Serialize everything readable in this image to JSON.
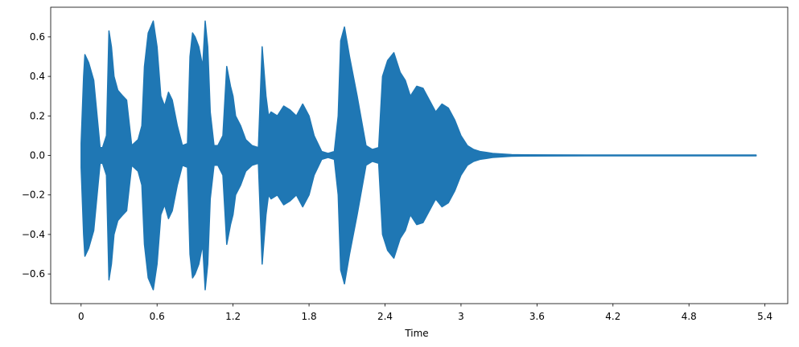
{
  "chart_data": {
    "type": "area",
    "title": "",
    "xlabel": "Time",
    "ylabel": "",
    "xlim": [
      -0.24,
      5.58
    ],
    "ylim": [
      -0.75,
      0.75
    ],
    "xticks": [
      0,
      0.6,
      1.2,
      1.8,
      2.4,
      3.0,
      3.6,
      4.2,
      4.8,
      5.4
    ],
    "xtick_labels": [
      "0",
      "0.6",
      "1.2",
      "1.8",
      "2.4",
      "3",
      "3.6",
      "4.2",
      "4.8",
      "5.4"
    ],
    "yticks": [
      0.6,
      0.4,
      0.2,
      0.0,
      -0.2,
      -0.4,
      -0.6
    ],
    "ytick_labels": [
      "0.6",
      "0.4",
      "0.2",
      "0.0",
      "−0.2",
      "−0.4",
      "−0.6"
    ],
    "grid": false,
    "color": "#1f77b4",
    "series": [
      {
        "x": [
          0.0,
          0.02,
          0.03,
          0.06,
          0.1,
          0.15,
          0.17,
          0.2,
          0.22,
          0.24,
          0.26,
          0.29,
          0.33,
          0.36,
          0.4,
          0.45,
          0.48,
          0.5,
          0.53,
          0.57,
          0.6,
          0.63,
          0.66,
          0.69,
          0.72,
          0.76,
          0.8,
          0.84,
          0.86,
          0.88,
          0.9,
          0.93,
          0.96,
          0.98,
          1.0,
          1.02,
          1.05,
          1.08,
          1.12,
          1.15,
          1.18,
          1.2,
          1.22,
          1.26,
          1.3,
          1.35,
          1.4,
          1.43,
          1.46,
          1.48,
          1.5,
          1.55,
          1.6,
          1.65,
          1.7,
          1.75,
          1.8,
          1.84,
          1.9,
          1.95,
          2.0,
          2.03,
          2.05,
          2.08,
          2.12,
          2.18,
          2.25,
          2.3,
          2.35,
          2.38,
          2.42,
          2.47,
          2.52,
          2.56,
          2.6,
          2.65,
          2.7,
          2.75,
          2.8,
          2.85,
          2.9,
          2.95,
          3.0,
          3.05,
          3.1,
          3.15,
          3.2,
          3.25,
          3.3,
          3.35,
          3.4,
          3.5,
          4.0,
          4.5,
          5.0,
          5.33
        ],
        "upper": [
          0.06,
          0.4,
          0.51,
          0.47,
          0.38,
          0.04,
          0.04,
          0.1,
          0.63,
          0.55,
          0.4,
          0.33,
          0.3,
          0.28,
          0.05,
          0.08,
          0.15,
          0.45,
          0.62,
          0.68,
          0.55,
          0.3,
          0.25,
          0.32,
          0.28,
          0.15,
          0.05,
          0.06,
          0.5,
          0.62,
          0.6,
          0.55,
          0.45,
          0.68,
          0.55,
          0.22,
          0.05,
          0.05,
          0.1,
          0.45,
          0.35,
          0.3,
          0.2,
          0.15,
          0.08,
          0.05,
          0.04,
          0.55,
          0.3,
          0.2,
          0.22,
          0.2,
          0.25,
          0.23,
          0.2,
          0.26,
          0.2,
          0.1,
          0.02,
          0.01,
          0.02,
          0.2,
          0.58,
          0.65,
          0.5,
          0.3,
          0.05,
          0.03,
          0.04,
          0.4,
          0.48,
          0.52,
          0.42,
          0.38,
          0.3,
          0.35,
          0.34,
          0.28,
          0.22,
          0.26,
          0.24,
          0.18,
          0.1,
          0.05,
          0.03,
          0.02,
          0.015,
          0.01,
          0.008,
          0.006,
          0.004,
          0.003,
          0.002,
          0.002,
          0.002,
          0.002
        ],
        "lower": [
          -0.06,
          -0.4,
          -0.51,
          -0.47,
          -0.38,
          -0.04,
          -0.04,
          -0.1,
          -0.63,
          -0.55,
          -0.4,
          -0.33,
          -0.3,
          -0.28,
          -0.05,
          -0.08,
          -0.15,
          -0.45,
          -0.62,
          -0.68,
          -0.55,
          -0.3,
          -0.25,
          -0.32,
          -0.28,
          -0.15,
          -0.05,
          -0.06,
          -0.5,
          -0.62,
          -0.6,
          -0.55,
          -0.45,
          -0.68,
          -0.55,
          -0.22,
          -0.05,
          -0.05,
          -0.1,
          -0.45,
          -0.35,
          -0.3,
          -0.2,
          -0.15,
          -0.08,
          -0.05,
          -0.04,
          -0.55,
          -0.3,
          -0.2,
          -0.22,
          -0.2,
          -0.25,
          -0.23,
          -0.2,
          -0.26,
          -0.2,
          -0.1,
          -0.02,
          -0.01,
          -0.02,
          -0.2,
          -0.58,
          -0.65,
          -0.5,
          -0.3,
          -0.05,
          -0.03,
          -0.04,
          -0.4,
          -0.48,
          -0.52,
          -0.42,
          -0.38,
          -0.3,
          -0.35,
          -0.34,
          -0.28,
          -0.22,
          -0.26,
          -0.24,
          -0.18,
          -0.1,
          -0.05,
          -0.03,
          -0.02,
          -0.015,
          -0.01,
          -0.008,
          -0.006,
          -0.004,
          -0.003,
          -0.002,
          -0.002,
          -0.002,
          -0.002
        ]
      }
    ]
  }
}
